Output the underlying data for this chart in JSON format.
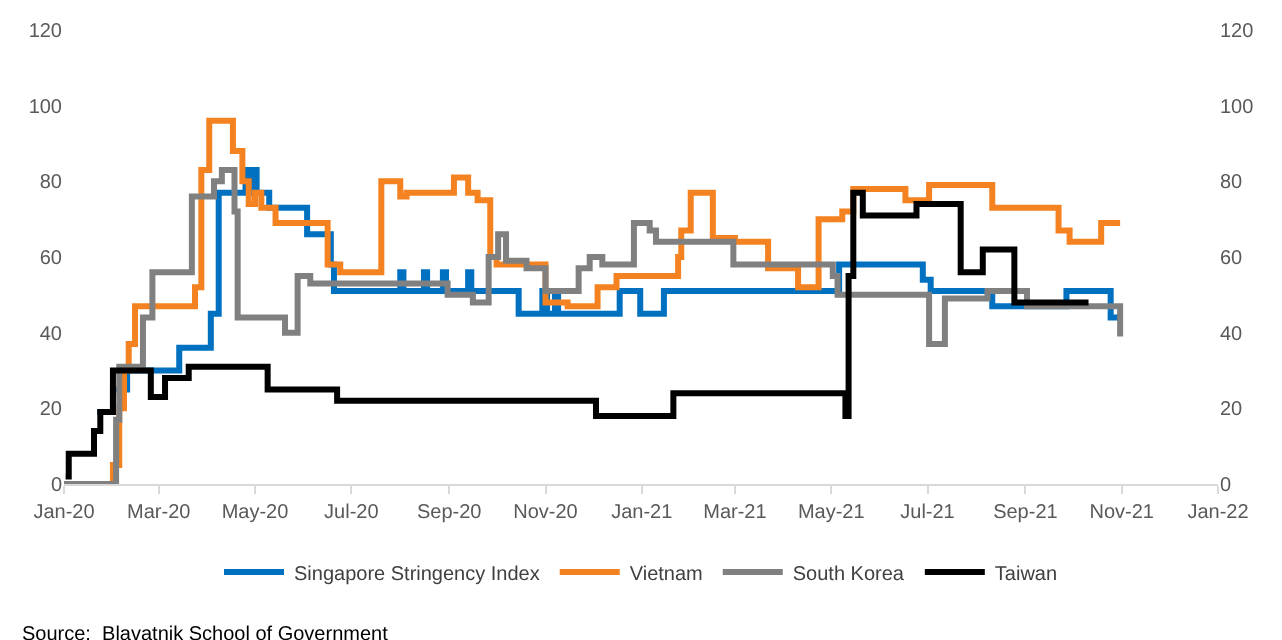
{
  "chart_data": {
    "type": "step",
    "xlim": [
      "2020-01-01",
      "2022-01-01"
    ],
    "xticks": [
      {
        "value": "2020-01-01",
        "label": "Jan-20"
      },
      {
        "value": "2020-03-01",
        "label": "Mar-20"
      },
      {
        "value": "2020-05-01",
        "label": "May-20"
      },
      {
        "value": "2020-07-01",
        "label": "Jul-20"
      },
      {
        "value": "2020-09-01",
        "label": "Sep-20"
      },
      {
        "value": "2020-11-01",
        "label": "Nov-20"
      },
      {
        "value": "2021-01-01",
        "label": "Jan-21"
      },
      {
        "value": "2021-03-01",
        "label": "Mar-21"
      },
      {
        "value": "2021-05-01",
        "label": "May-21"
      },
      {
        "value": "2021-07-01",
        "label": "Jul-21"
      },
      {
        "value": "2021-09-01",
        "label": "Sep-21"
      },
      {
        "value": "2021-11-01",
        "label": "Nov-21"
      },
      {
        "value": "2022-01-01",
        "label": "Jan-22"
      }
    ],
    "ylim": [
      0,
      120
    ],
    "yticks": [
      0,
      20,
      40,
      60,
      80,
      100,
      120
    ],
    "y2lim": [
      0,
      120
    ],
    "y2ticks": [
      0,
      20,
      40,
      60,
      80,
      100,
      120
    ],
    "grid": false,
    "legend": "bottom",
    "marker": "none",
    "line_style": "solid",
    "annotations": [
      "Source:  Blavatnik School of Government"
    ],
    "series": [
      {
        "name": "Singapore Stringency Index",
        "color": "#0070c0",
        "x": [
          "2020-01-22",
          "2020-02-01",
          "2020-02-10",
          "2020-03-14",
          "2020-04-03",
          "2020-04-08",
          "2020-04-25",
          "2020-04-27",
          "2020-04-30",
          "2020-05-02",
          "2020-05-10",
          "2020-06-03",
          "2020-06-18",
          "2020-06-20",
          "2020-08-01",
          "2020-08-03",
          "2020-08-16",
          "2020-08-18",
          "2020-08-28",
          "2020-08-30",
          "2020-09-13",
          "2020-09-15",
          "2020-10-15",
          "2020-10-30",
          "2020-11-02",
          "2020-11-07",
          "2020-11-09",
          "2020-12-18",
          "2020-12-31",
          "2021-01-15",
          "2021-05-06",
          "2021-06-28",
          "2021-07-03",
          "2021-08-11",
          "2021-09-27",
          "2021-10-25",
          "2021-10-31"
        ],
        "values": [
          19,
          25,
          30,
          36,
          45,
          77,
          83,
          77,
          83,
          77,
          73,
          66,
          58,
          51,
          56,
          51,
          56,
          51,
          56,
          51,
          56,
          51,
          45,
          51,
          45,
          51,
          45,
          51,
          45,
          51,
          58,
          54,
          51,
          47,
          51,
          44,
          44
        ]
      },
      {
        "name": "Vietnam",
        "color": "#f58220",
        "x": [
          "2020-01-01",
          "2020-02-01",
          "2020-02-05",
          "2020-02-08",
          "2020-02-11",
          "2020-02-15",
          "2020-03-24",
          "2020-03-28",
          "2020-04-02",
          "2020-04-17",
          "2020-04-23",
          "2020-04-27",
          "2020-05-01",
          "2020-05-05",
          "2020-05-14",
          "2020-06-16",
          "2020-06-24",
          "2020-07-20",
          "2020-08-01",
          "2020-08-05",
          "2020-09-04",
          "2020-09-13",
          "2020-09-19",
          "2020-09-27",
          "2020-10-01",
          "2020-11-01",
          "2020-11-15",
          "2020-12-04",
          "2020-12-16",
          "2021-01-24",
          "2021-01-26",
          "2021-02-01",
          "2021-02-15",
          "2021-03-01",
          "2021-03-22",
          "2021-04-10",
          "2021-04-23",
          "2021-05-08",
          "2021-05-15",
          "2021-06-17",
          "2021-07-02",
          "2021-08-11",
          "2021-09-22",
          "2021-09-29",
          "2021-10-19",
          "2021-10-31"
        ],
        "values": [
          0,
          5,
          20,
          30,
          37,
          47,
          52,
          83,
          96,
          88,
          80,
          74,
          77,
          73,
          69,
          58,
          56,
          80,
          76,
          77,
          81,
          77,
          75,
          60,
          58,
          48,
          47,
          52,
          55,
          60,
          67,
          77,
          65,
          64,
          57,
          52,
          70,
          72,
          78,
          75,
          79,
          73,
          67,
          64,
          69,
          69
        ]
      },
      {
        "name": "South Korea",
        "color": "#808080",
        "x": [
          "2020-01-01",
          "2020-01-30",
          "2020-02-03",
          "2020-02-05",
          "2020-02-20",
          "2020-02-26",
          "2020-03-22",
          "2020-04-05",
          "2020-04-10",
          "2020-04-18",
          "2020-04-20",
          "2020-05-20",
          "2020-05-28",
          "2020-06-05",
          "2020-08-31",
          "2020-09-16",
          "2020-09-26",
          "2020-10-02",
          "2020-10-07",
          "2020-10-20",
          "2020-11-01",
          "2020-11-22",
          "2020-11-29",
          "2020-12-07",
          "2020-12-27",
          "2021-01-06",
          "2021-01-10",
          "2021-02-28",
          "2021-05-02",
          "2021-05-05",
          "2021-07-02",
          "2021-07-12",
          "2021-08-08",
          "2021-09-02",
          "2021-10-30",
          "2021-10-31"
        ],
        "values": [
          0,
          0,
          17,
          31,
          44,
          56,
          76,
          80,
          83,
          72,
          44,
          40,
          55,
          53,
          50,
          48,
          60,
          66,
          59,
          57,
          51,
          57,
          60,
          58,
          69,
          67,
          64,
          58,
          55,
          50,
          37,
          49,
          51,
          47,
          47,
          39
        ]
      },
      {
        "name": "Taiwan",
        "color": "#000000",
        "x": [
          "2020-01-02",
          "2020-01-04",
          "2020-01-20",
          "2020-01-24",
          "2020-02-01",
          "2020-02-25",
          "2020-03-05",
          "2020-03-20",
          "2020-05-09",
          "2020-06-22",
          "2020-12-03",
          "2021-01-21",
          "2021-05-10",
          "2021-05-12",
          "2021-05-15",
          "2021-05-21",
          "2021-06-24",
          "2021-07-22",
          "2021-08-05",
          "2021-08-25",
          "2021-10-11"
        ],
        "values": [
          2,
          8,
          14,
          19,
          30,
          23,
          28,
          31,
          25,
          22,
          18,
          24,
          18,
          55,
          77,
          71,
          74,
          56,
          62,
          48,
          48
        ]
      }
    ]
  }
}
